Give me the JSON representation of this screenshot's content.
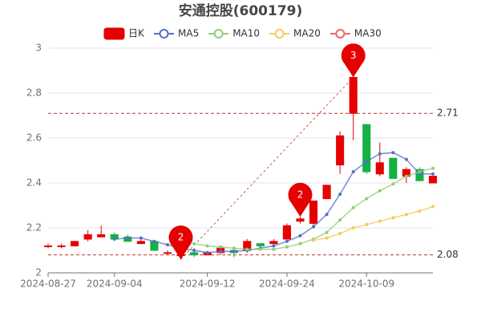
{
  "chart_data": {
    "type": "candlestick",
    "title": "安通控股(600179)",
    "categories": [
      "2024-08-27",
      null,
      null,
      null,
      null,
      "2024-09-04",
      null,
      null,
      null,
      null,
      null,
      null,
      "2024-09-12",
      null,
      null,
      null,
      null,
      null,
      "2024-09-24",
      null,
      null,
      null,
      null,
      null,
      "2024-10-09",
      null,
      null,
      null,
      null,
      null
    ],
    "candles": {
      "name": "日K",
      "up_color": "#e60000",
      "down_color": "#14b143",
      "open": [
        2.12,
        2.12,
        2.12,
        2.15,
        2.16,
        2.17,
        2.16,
        2.13,
        2.14,
        2.09,
        2.08,
        2.09,
        2.08,
        2.09,
        2.1,
        2.1,
        2.13,
        2.13,
        2.15,
        2.23,
        2.22,
        2.33,
        2.48,
        2.71,
        2.66,
        2.44,
        2.51,
        2.43,
        2.46,
        2.4
      ],
      "close": [
        2.12,
        2.12,
        2.14,
        2.17,
        2.17,
        2.15,
        2.14,
        2.14,
        2.1,
        2.09,
        2.08,
        2.08,
        2.09,
        2.11,
        2.09,
        2.14,
        2.12,
        2.14,
        2.21,
        2.24,
        2.32,
        2.39,
        2.61,
        2.87,
        2.45,
        2.49,
        2.42,
        2.46,
        2.41,
        2.43
      ],
      "high": [
        2.13,
        2.13,
        2.14,
        2.19,
        2.21,
        2.18,
        2.17,
        2.15,
        2.14,
        2.1,
        2.09,
        2.11,
        2.09,
        2.11,
        2.1,
        2.15,
        2.13,
        2.15,
        2.22,
        2.25,
        2.32,
        2.39,
        2.63,
        2.87,
        2.66,
        2.58,
        2.51,
        2.47,
        2.47,
        2.43
      ],
      "low": [
        2.11,
        2.11,
        2.12,
        2.14,
        2.16,
        2.15,
        2.14,
        2.13,
        2.1,
        2.08,
        2.06,
        2.07,
        2.08,
        2.08,
        2.07,
        2.09,
        2.11,
        2.12,
        2.15,
        2.22,
        2.21,
        2.33,
        2.44,
        2.59,
        2.44,
        2.43,
        2.42,
        2.4,
        2.41,
        2.4
      ]
    },
    "series": [
      {
        "name": "MA5",
        "color": "#5470c6",
        "values": [
          null,
          null,
          null,
          null,
          null,
          2.15,
          2.155,
          2.155,
          2.14,
          2.125,
          2.11,
          2.1,
          2.09,
          2.095,
          2.095,
          2.1,
          2.11,
          2.12,
          2.14,
          2.165,
          2.205,
          2.26,
          2.35,
          2.45,
          2.495,
          2.53,
          2.535,
          2.505,
          2.44,
          2.44
        ]
      },
      {
        "name": "MA10",
        "color": "#91cc75",
        "values": [
          null,
          null,
          null,
          null,
          null,
          null,
          null,
          null,
          null,
          null,
          null,
          2.13,
          2.12,
          2.115,
          2.11,
          2.105,
          2.105,
          2.105,
          2.115,
          2.13,
          2.15,
          2.18,
          2.235,
          2.29,
          2.33,
          2.365,
          2.395,
          2.43,
          2.45,
          2.465
        ]
      },
      {
        "name": "MA20",
        "color": "#fac858",
        "values": [
          null,
          null,
          null,
          null,
          null,
          null,
          null,
          null,
          null,
          null,
          null,
          null,
          null,
          null,
          null,
          null,
          null,
          null,
          null,
          null,
          2.145,
          2.155,
          2.175,
          2.2,
          2.215,
          2.23,
          2.245,
          2.26,
          2.275,
          2.295
        ]
      },
      {
        "name": "MA30",
        "color": "#ee6666",
        "values": [
          null,
          null,
          null,
          null,
          null,
          null,
          null,
          null,
          null,
          null,
          null,
          null,
          null,
          null,
          null,
          null,
          null,
          null,
          null,
          null,
          null,
          null,
          null,
          null,
          null,
          null,
          null,
          null,
          null,
          null
        ]
      }
    ],
    "mark_points": [
      {
        "label": "3",
        "index": 23,
        "value": 2.87
      },
      {
        "label": "2",
        "index": 10,
        "value": 2.06
      },
      {
        "label": "2",
        "index": 19,
        "value": 2.25
      }
    ],
    "mark_lines": [
      2.71,
      2.08
    ],
    "ylim": [
      2,
      3
    ],
    "yticks": [
      2,
      2.2,
      2.4,
      2.6,
      2.8,
      3
    ],
    "grid": true
  }
}
